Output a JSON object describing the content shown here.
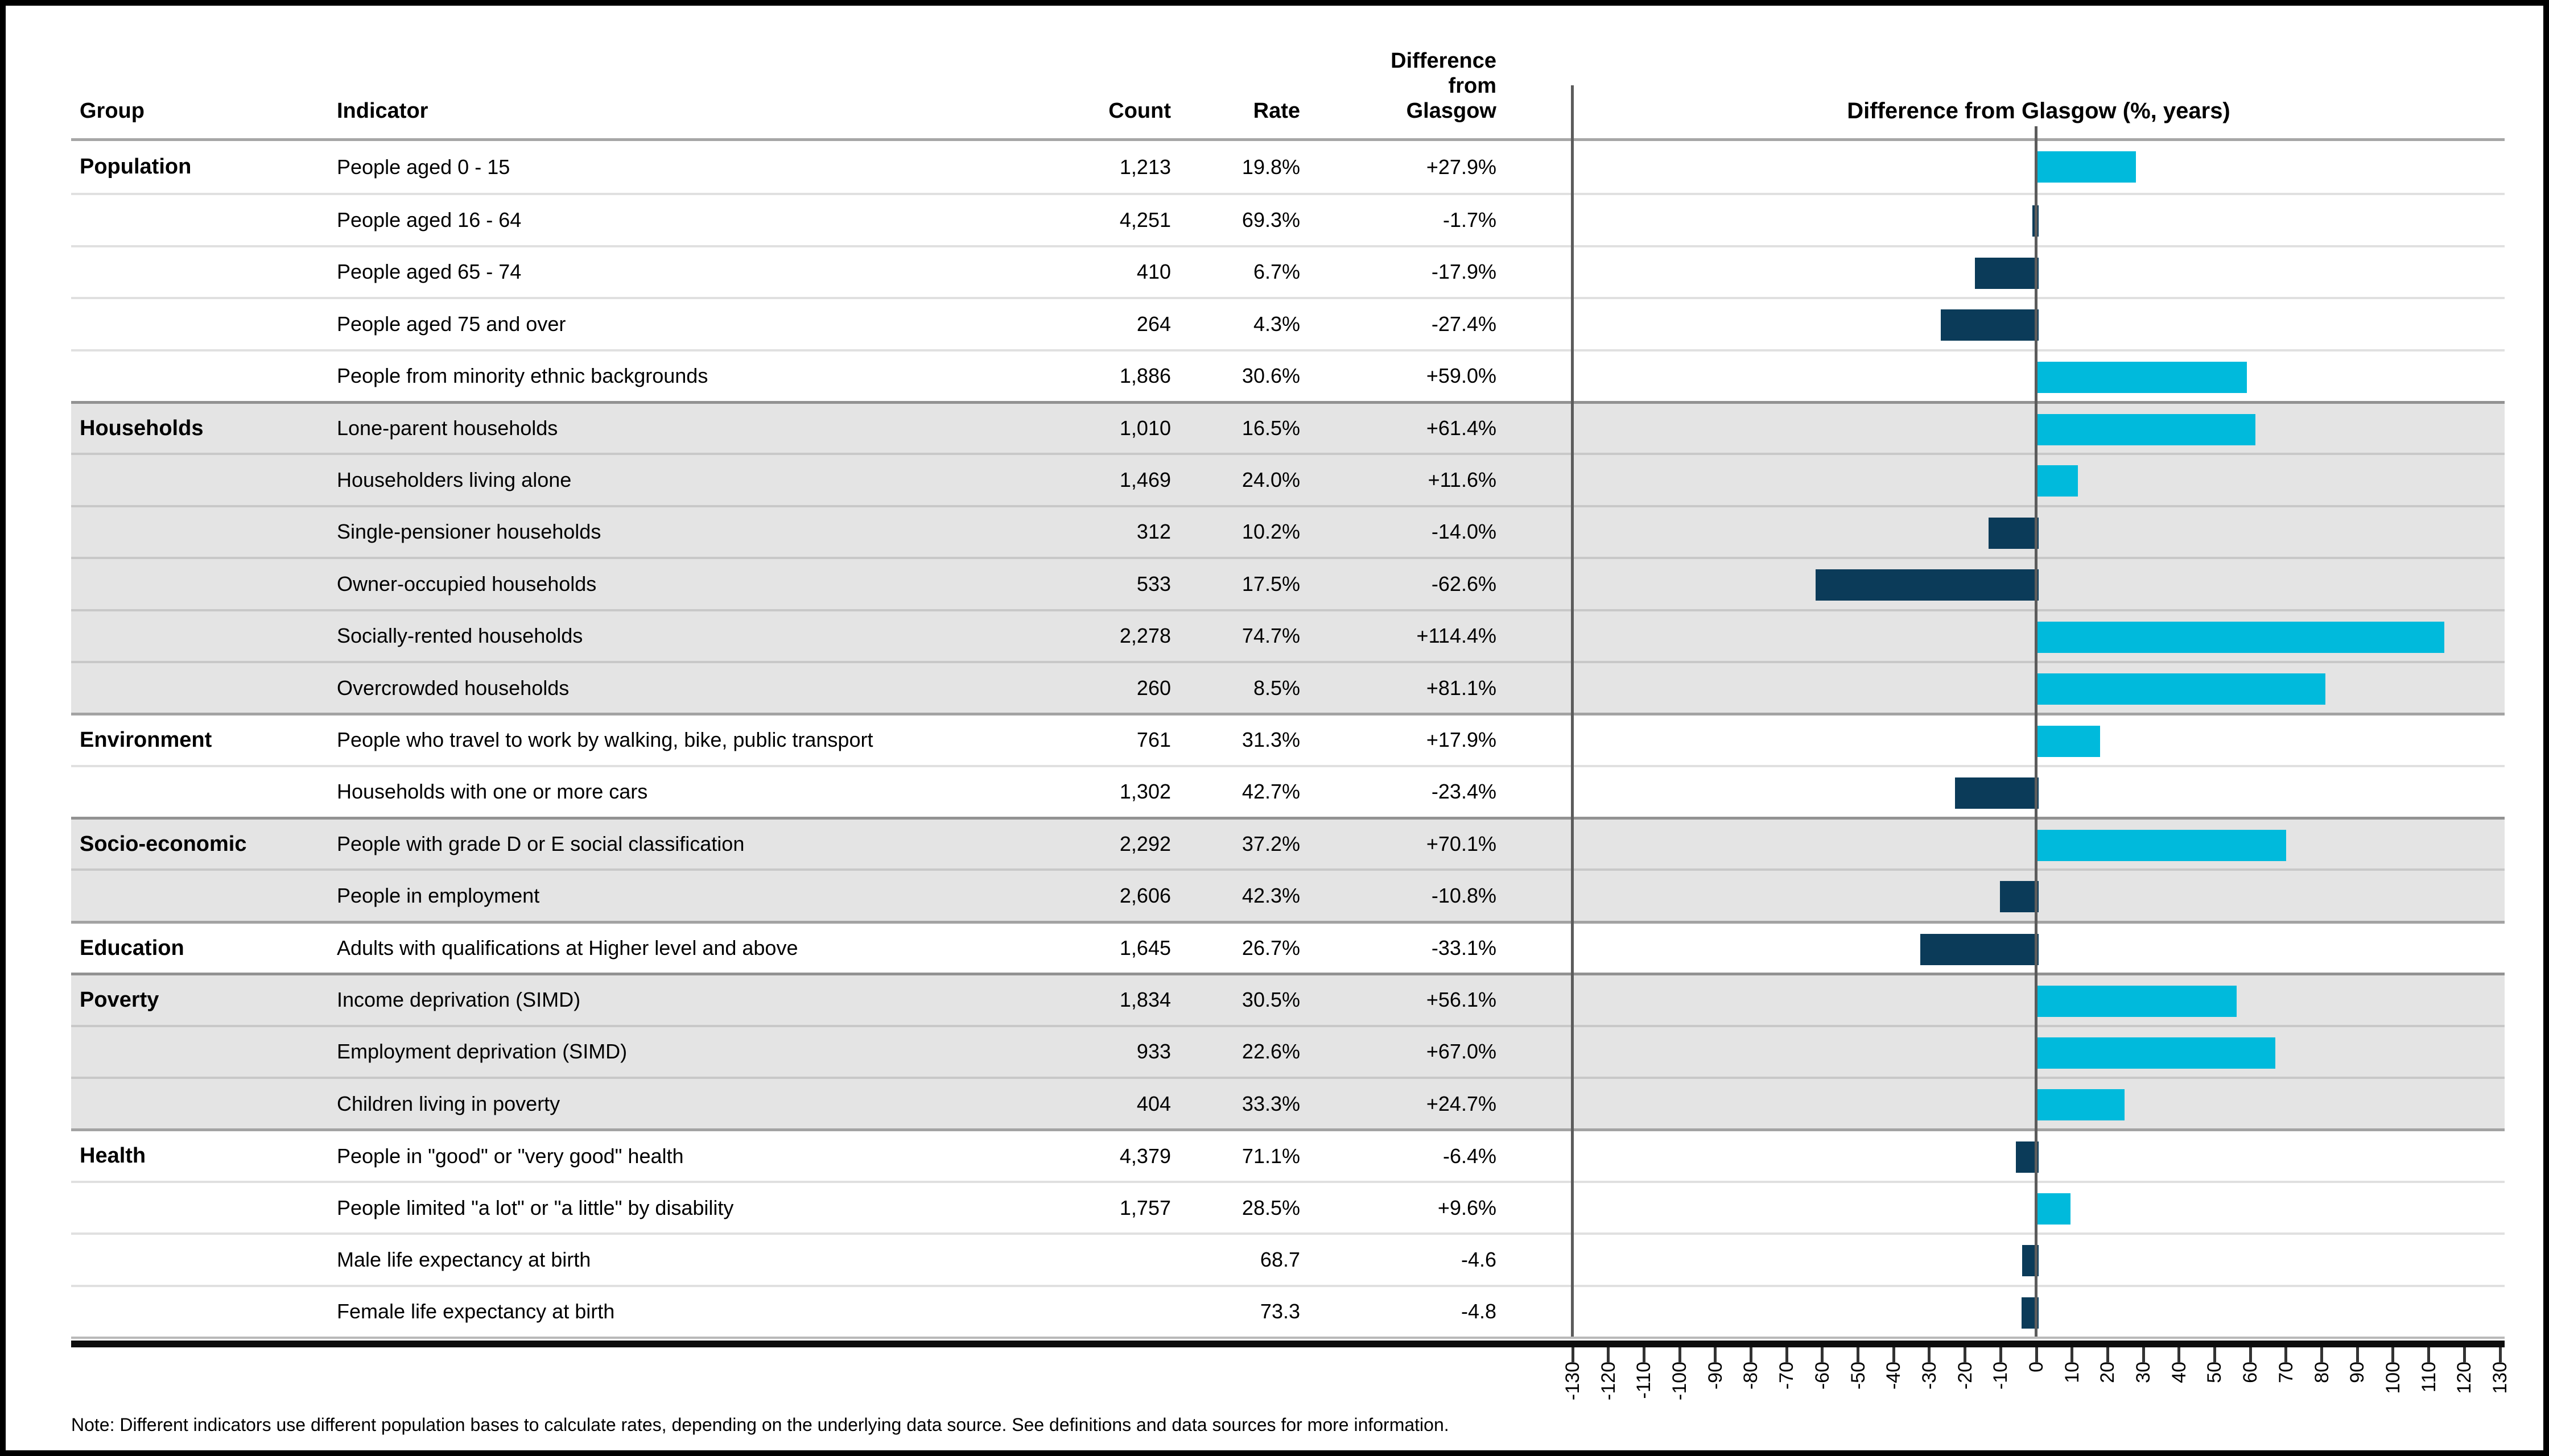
{
  "note": "Note: Different indicators use different population bases to calculate rates, depending on the underlying data source. See definitions and data sources for more information.",
  "table": {
    "columns": {
      "group": "Group",
      "indicator": "Indicator",
      "count": "Count",
      "rate": "Rate",
      "diff": "Difference\nfrom\nGlasgow"
    },
    "rows": [
      {
        "group": "Population",
        "indicator": "People aged 0 - 15",
        "count": "1,213",
        "rate": "19.8%",
        "diff": "+27.9%",
        "diff_value": 27.9,
        "shaded": false,
        "groupStart": true
      },
      {
        "group": "",
        "indicator": "People aged 16 - 64",
        "count": "4,251",
        "rate": "69.3%",
        "diff": "-1.7%",
        "diff_value": -1.7,
        "shaded": false,
        "groupStart": false
      },
      {
        "group": "",
        "indicator": "People aged 65 - 74",
        "count": "410",
        "rate": "6.7%",
        "diff": "-17.9%",
        "diff_value": -17.9,
        "shaded": false,
        "groupStart": false
      },
      {
        "group": "",
        "indicator": "People aged 75 and over",
        "count": "264",
        "rate": "4.3%",
        "diff": "-27.4%",
        "diff_value": -27.4,
        "shaded": false,
        "groupStart": false
      },
      {
        "group": "",
        "indicator": "People from minority ethnic backgrounds",
        "count": "1,886",
        "rate": "30.6%",
        "diff": "+59.0%",
        "diff_value": 59.0,
        "shaded": false,
        "groupStart": false
      },
      {
        "group": "Households",
        "indicator": "Lone-parent households",
        "count": "1,010",
        "rate": "16.5%",
        "diff": "+61.4%",
        "diff_value": 61.4,
        "shaded": true,
        "groupStart": true
      },
      {
        "group": "",
        "indicator": "Householders living alone",
        "count": "1,469",
        "rate": "24.0%",
        "diff": "+11.6%",
        "diff_value": 11.6,
        "shaded": true,
        "groupStart": false
      },
      {
        "group": "",
        "indicator": "Single-pensioner households",
        "count": "312",
        "rate": "10.2%",
        "diff": "-14.0%",
        "diff_value": -14.0,
        "shaded": true,
        "groupStart": false
      },
      {
        "group": "",
        "indicator": "Owner-occupied households",
        "count": "533",
        "rate": "17.5%",
        "diff": "-62.6%",
        "diff_value": -62.6,
        "shaded": true,
        "groupStart": false
      },
      {
        "group": "",
        "indicator": "Socially-rented households",
        "count": "2,278",
        "rate": "74.7%",
        "diff": "+114.4%",
        "diff_value": 114.4,
        "shaded": true,
        "groupStart": false
      },
      {
        "group": "",
        "indicator": "Overcrowded households",
        "count": "260",
        "rate": "8.5%",
        "diff": "+81.1%",
        "diff_value": 81.1,
        "shaded": true,
        "groupStart": false
      },
      {
        "group": "Environment",
        "indicator": "People who travel to work by walking, bike, public transport",
        "count": "761",
        "rate": "31.3%",
        "diff": "+17.9%",
        "diff_value": 17.9,
        "shaded": false,
        "groupStart": true
      },
      {
        "group": "",
        "indicator": "Households with one or more cars",
        "count": "1,302",
        "rate": "42.7%",
        "diff": "-23.4%",
        "diff_value": -23.4,
        "shaded": false,
        "groupStart": false
      },
      {
        "group": "Socio-economic",
        "indicator": "People with grade D or E social classification",
        "count": "2,292",
        "rate": "37.2%",
        "diff": "+70.1%",
        "diff_value": 70.1,
        "shaded": true,
        "groupStart": true
      },
      {
        "group": "",
        "indicator": "People in employment",
        "count": "2,606",
        "rate": "42.3%",
        "diff": "-10.8%",
        "diff_value": -10.8,
        "shaded": true,
        "groupStart": false
      },
      {
        "group": "Education",
        "indicator": "Adults with qualifications at Higher level and above",
        "count": "1,645",
        "rate": "26.7%",
        "diff": "-33.1%",
        "diff_value": -33.1,
        "shaded": false,
        "groupStart": true
      },
      {
        "group": "Poverty",
        "indicator": "Income deprivation (SIMD)",
        "count": "1,834",
        "rate": "30.5%",
        "diff": "+56.1%",
        "diff_value": 56.1,
        "shaded": true,
        "groupStart": true
      },
      {
        "group": "",
        "indicator": "Employment deprivation (SIMD)",
        "count": "933",
        "rate": "22.6%",
        "diff": "+67.0%",
        "diff_value": 67.0,
        "shaded": true,
        "groupStart": false
      },
      {
        "group": "",
        "indicator": "Children living in poverty",
        "count": "404",
        "rate": "33.3%",
        "diff": "+24.7%",
        "diff_value": 24.7,
        "shaded": true,
        "groupStart": false
      },
      {
        "group": "Health",
        "indicator": "People in \"good\" or \"very good\" health",
        "count": "4,379",
        "rate": "71.1%",
        "diff": "-6.4%",
        "diff_value": -6.4,
        "shaded": false,
        "groupStart": true
      },
      {
        "group": "",
        "indicator": "People limited \"a lot\" or \"a little\" by disability",
        "count": "1,757",
        "rate": "28.5%",
        "diff": "+9.6%",
        "diff_value": 9.6,
        "shaded": false,
        "groupStart": false
      },
      {
        "group": "",
        "indicator": "Male life expectancy at birth",
        "count": "",
        "rate": "68.7",
        "diff": "-4.6",
        "diff_value": -4.6,
        "shaded": false,
        "groupStart": false
      },
      {
        "group": "",
        "indicator": "Female life expectancy at birth",
        "count": "",
        "rate": "73.3",
        "diff": "-4.8",
        "diff_value": -4.8,
        "shaded": false,
        "groupStart": false
      }
    ]
  },
  "chart_data": {
    "type": "bar",
    "orientation": "horizontal",
    "title": "Difference from Glasgow (%, years)",
    "categories": [
      "People aged 0 - 15",
      "People aged 16 - 64",
      "People aged 65 - 74",
      "People aged 75 and over",
      "People from minority ethnic backgrounds",
      "Lone-parent households",
      "Householders living alone",
      "Single-pensioner households",
      "Owner-occupied households",
      "Socially-rented households",
      "Overcrowded households",
      "People who travel to work by walking, bike, public transport",
      "Households with one or more cars",
      "People with grade D or E social classification",
      "People in employment",
      "Adults with qualifications at Higher level and above",
      "Income deprivation (SIMD)",
      "Employment deprivation (SIMD)",
      "Children living in poverty",
      "People in \"good\" or \"very good\" health",
      "People limited \"a lot\" or \"a little\" by disability",
      "Male life expectancy at birth",
      "Female life expectancy at birth"
    ],
    "values": [
      27.9,
      -1.7,
      -17.9,
      -27.4,
      59.0,
      61.4,
      11.6,
      -14.0,
      -62.6,
      114.4,
      81.1,
      17.9,
      -23.4,
      70.1,
      -10.8,
      -33.1,
      56.1,
      67.0,
      24.7,
      -6.4,
      9.6,
      -4.6,
      -4.8
    ],
    "xlim": [
      -130,
      130
    ],
    "x_ticks": [
      -130,
      -120,
      -110,
      -100,
      -90,
      -80,
      -70,
      -60,
      -50,
      -40,
      -30,
      -20,
      -10,
      0,
      10,
      20,
      30,
      40,
      50,
      60,
      70,
      80,
      90,
      100,
      110,
      120,
      130
    ],
    "baseline": 0,
    "grid": "none",
    "legend": "none",
    "colors": {
      "positive_bar": "#00badc",
      "negative_bar": "#0b3b59",
      "shaded_row": "#e4e4e4",
      "zero_line": "#5c5c5c",
      "axis_line": "#0d0d0d"
    }
  }
}
